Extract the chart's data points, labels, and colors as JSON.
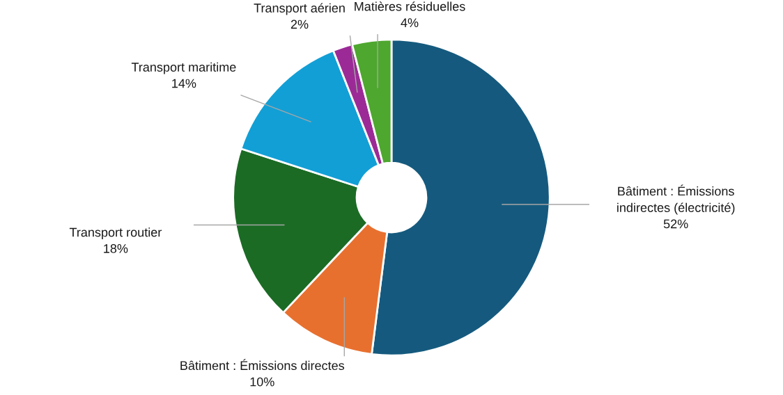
{
  "chart_data": {
    "type": "donut",
    "categories": [
      "Bâtiment : Émissions indirectes (électricité)",
      "Bâtiment : Émissions directes",
      "Transport routier",
      "Transport maritime",
      "Transport aérien",
      "Matières résiduelles"
    ],
    "values": [
      52,
      10,
      18,
      14,
      2,
      4
    ],
    "value_labels": [
      "52%",
      "10%",
      "18%",
      "14%",
      "2%",
      "4%"
    ],
    "colors": [
      "#155a7e",
      "#e8702f",
      "#1b6b24",
      "#129fd6",
      "#9b2a96",
      "#4ea72e"
    ],
    "legend": false
  }
}
